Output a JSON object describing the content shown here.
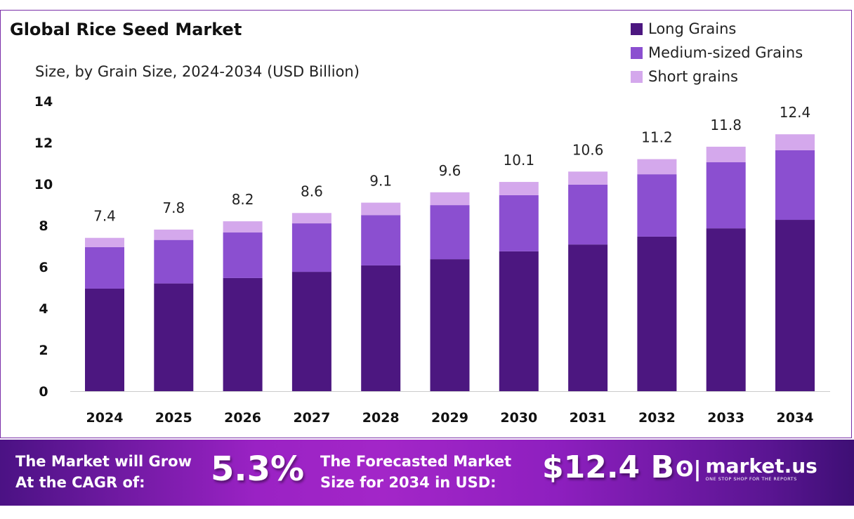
{
  "chart_data": {
    "type": "bar",
    "stacked": true,
    "title": "Global Rice Seed Market",
    "subtitle": "Size, by Grain Size, 2024-2034 (USD Billion)",
    "categories": [
      "2024",
      "2025",
      "2026",
      "2027",
      "2028",
      "2029",
      "2030",
      "2031",
      "2032",
      "2033",
      "2034"
    ],
    "series": [
      {
        "name": "Long Grains",
        "color": "#4c1780",
        "values": [
          4.95,
          5.2,
          5.46,
          5.76,
          6.07,
          6.37,
          6.75,
          7.08,
          7.46,
          7.86,
          8.27
        ]
      },
      {
        "name": "Medium-sized Grains",
        "color": "#8b4fd0",
        "values": [
          2.0,
          2.1,
          2.2,
          2.34,
          2.43,
          2.61,
          2.71,
          2.89,
          3.01,
          3.19,
          3.36
        ]
      },
      {
        "name": "Short grains",
        "color": "#d4a8ec",
        "values": [
          0.45,
          0.5,
          0.54,
          0.5,
          0.6,
          0.62,
          0.64,
          0.63,
          0.73,
          0.75,
          0.77
        ]
      }
    ],
    "totals": [
      "7.4",
      "7.8",
      "8.2",
      "8.6",
      "9.1",
      "9.6",
      "10.1",
      "10.6",
      "11.2",
      "11.8",
      "12.4"
    ],
    "yticks": [
      "0",
      "2",
      "4",
      "6",
      "8",
      "10",
      "12",
      "14"
    ],
    "ylim": [
      0,
      14
    ],
    "grid": false,
    "legend": "top-right"
  },
  "banner": {
    "cagr_label_1": "The Market will Grow",
    "cagr_label_2": "At the CAGR of:",
    "cagr_value": "5.3%",
    "forecast_label_1": "The Forecasted Market",
    "forecast_label_2": "Size for 2034 in USD:",
    "forecast_value": "$12.4 B",
    "logo_name": "market.us",
    "logo_tagline": "ONE STOP SHOP FOR THE REPORTS"
  }
}
